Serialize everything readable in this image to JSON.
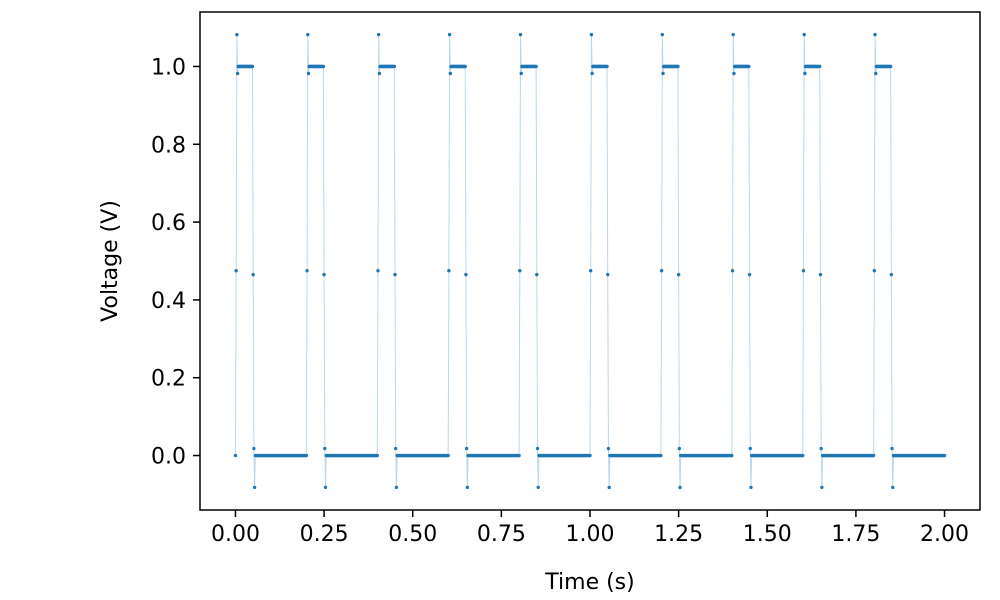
{
  "chart_data": {
    "type": "line",
    "title": "",
    "xlabel": "Time (s)",
    "ylabel": "Voltage (V)",
    "xlim": [
      -0.1,
      2.1
    ],
    "ylim": [
      -0.14,
      1.14
    ],
    "x_ticks": [
      0.0,
      0.25,
      0.5,
      0.75,
      1.0,
      1.25,
      1.5,
      1.75,
      2.0
    ],
    "x_tick_labels": [
      "0.00",
      "0.25",
      "0.50",
      "0.75",
      "1.00",
      "1.25",
      "1.50",
      "1.75",
      "2.00"
    ],
    "y_ticks": [
      0.0,
      0.2,
      0.4,
      0.6,
      0.8,
      1.0
    ],
    "y_tick_labels": [
      "0.0",
      "0.2",
      "0.4",
      "0.6",
      "0.8",
      "1.0"
    ],
    "grid": false,
    "legend": "none",
    "signal": {
      "kind": "pulse-train",
      "period": 0.2,
      "duty_cycle": 0.25,
      "high_level": 1.0,
      "low_level": 0.0,
      "t_start": 0.0,
      "t_end": 2.0,
      "sample_step": 0.002,
      "rising_edge_samples": [
        0.0,
        0.475,
        1.082,
        0.982
      ],
      "falling_edge_samples": [
        0.465,
        0.018,
        -0.082
      ]
    },
    "series": [
      {
        "color": "#1f77b4",
        "marker": "point",
        "line_alpha": 0.3
      }
    ]
  }
}
